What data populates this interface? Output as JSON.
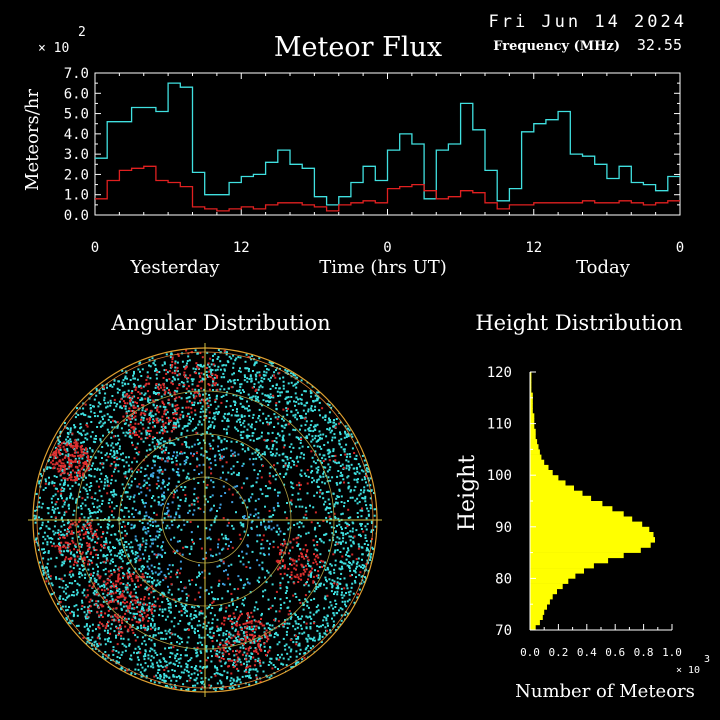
{
  "header": {
    "date": "Fri Jun 14 2024",
    "frequency_label": "Frequency (MHz)",
    "frequency_value": "32.55"
  },
  "chart_data": [
    {
      "type": "line",
      "title": "Meteor Flux",
      "ylabel": "Meteors/hr",
      "xlabel": "Time (hrs UT)",
      "y_multiplier_label": "× 10",
      "y_multiplier_exp": "2",
      "ylim": [
        0,
        7.0
      ],
      "y_ticks": [
        "0.0",
        "1.0",
        "2.0",
        "3.0",
        "4.0",
        "5.0",
        "6.0",
        "7.0"
      ],
      "x_ticks": [
        "0",
        "12",
        "0",
        "12",
        "0"
      ],
      "day_labels": [
        "Yesterday",
        "Today"
      ],
      "x_hours": [
        0,
        1,
        2,
        3,
        4,
        5,
        6,
        7,
        8,
        9,
        10,
        11,
        12,
        13,
        14,
        15,
        16,
        17,
        18,
        19,
        20,
        21,
        22,
        23,
        24,
        25,
        26,
        27,
        28,
        29,
        30,
        31,
        32,
        33,
        34,
        35,
        36,
        37,
        38,
        39,
        40,
        41,
        42,
        43,
        44,
        45,
        46,
        47
      ],
      "series": [
        {
          "color": "#40e0e0",
          "values": [
            2.8,
            4.6,
            4.6,
            5.3,
            5.3,
            5.1,
            6.5,
            6.3,
            2.1,
            1.0,
            1.0,
            1.6,
            1.9,
            2.0,
            2.6,
            3.2,
            2.5,
            2.3,
            0.9,
            0.5,
            0.9,
            1.6,
            2.4,
            1.7,
            3.2,
            4.0,
            3.5,
            0.8,
            3.2,
            3.5,
            5.5,
            4.2,
            2.2,
            0.7,
            1.3,
            4.1,
            4.5,
            4.7,
            5.1,
            3.0,
            2.9,
            2.5,
            1.8,
            2.4,
            1.6,
            1.5,
            1.2,
            1.9
          ]
        },
        {
          "color": "#e02020",
          "values": [
            0.8,
            1.7,
            2.2,
            2.3,
            2.4,
            1.7,
            1.6,
            1.4,
            0.4,
            0.3,
            0.2,
            0.3,
            0.4,
            0.3,
            0.5,
            0.6,
            0.6,
            0.5,
            0.4,
            0.2,
            0.5,
            0.6,
            0.7,
            0.6,
            1.3,
            1.4,
            1.5,
            1.2,
            0.8,
            0.9,
            1.2,
            1.1,
            0.6,
            0.3,
            0.5,
            0.5,
            0.6,
            0.6,
            0.6,
            0.6,
            0.7,
            0.6,
            0.6,
            0.7,
            0.6,
            0.5,
            0.6,
            0.7
          ]
        }
      ]
    },
    {
      "type": "scatter",
      "title": "Angular Distribution"
    },
    {
      "type": "bar",
      "orientation": "horizontal",
      "title": "Height Distribution",
      "ylabel": "Height",
      "xlabel": "Number of Meteors",
      "x_multiplier_label": "× 10",
      "x_multiplier_exp": "3",
      "ylim": [
        70,
        120
      ],
      "xlim": [
        0,
        1.0
      ],
      "y_ticks": [
        "70",
        "80",
        "90",
        "100",
        "110",
        "120"
      ],
      "x_ticks": [
        "0.0",
        "0.2",
        "0.4",
        "0.6",
        "0.8",
        "1.0"
      ],
      "heights": [
        70,
        71,
        72,
        73,
        74,
        75,
        76,
        77,
        78,
        79,
        80,
        81,
        82,
        83,
        84,
        85,
        86,
        87,
        88,
        89,
        90,
        91,
        92,
        93,
        94,
        95,
        96,
        97,
        98,
        99,
        100,
        101,
        102,
        103,
        104,
        105,
        106,
        107,
        108,
        109,
        110,
        111,
        112,
        113,
        114,
        115,
        116,
        117,
        118,
        119
      ],
      "values": [
        0.04,
        0.07,
        0.09,
        0.1,
        0.12,
        0.14,
        0.16,
        0.19,
        0.23,
        0.27,
        0.32,
        0.38,
        0.45,
        0.55,
        0.66,
        0.78,
        0.85,
        0.88,
        0.87,
        0.84,
        0.79,
        0.72,
        0.66,
        0.58,
        0.51,
        0.43,
        0.37,
        0.31,
        0.25,
        0.2,
        0.16,
        0.13,
        0.1,
        0.08,
        0.07,
        0.06,
        0.05,
        0.04,
        0.04,
        0.03,
        0.03,
        0.03,
        0.02,
        0.02,
        0.02,
        0.02,
        0.01,
        0.01,
        0.01,
        0.01
      ],
      "color": "#ffff00"
    }
  ]
}
